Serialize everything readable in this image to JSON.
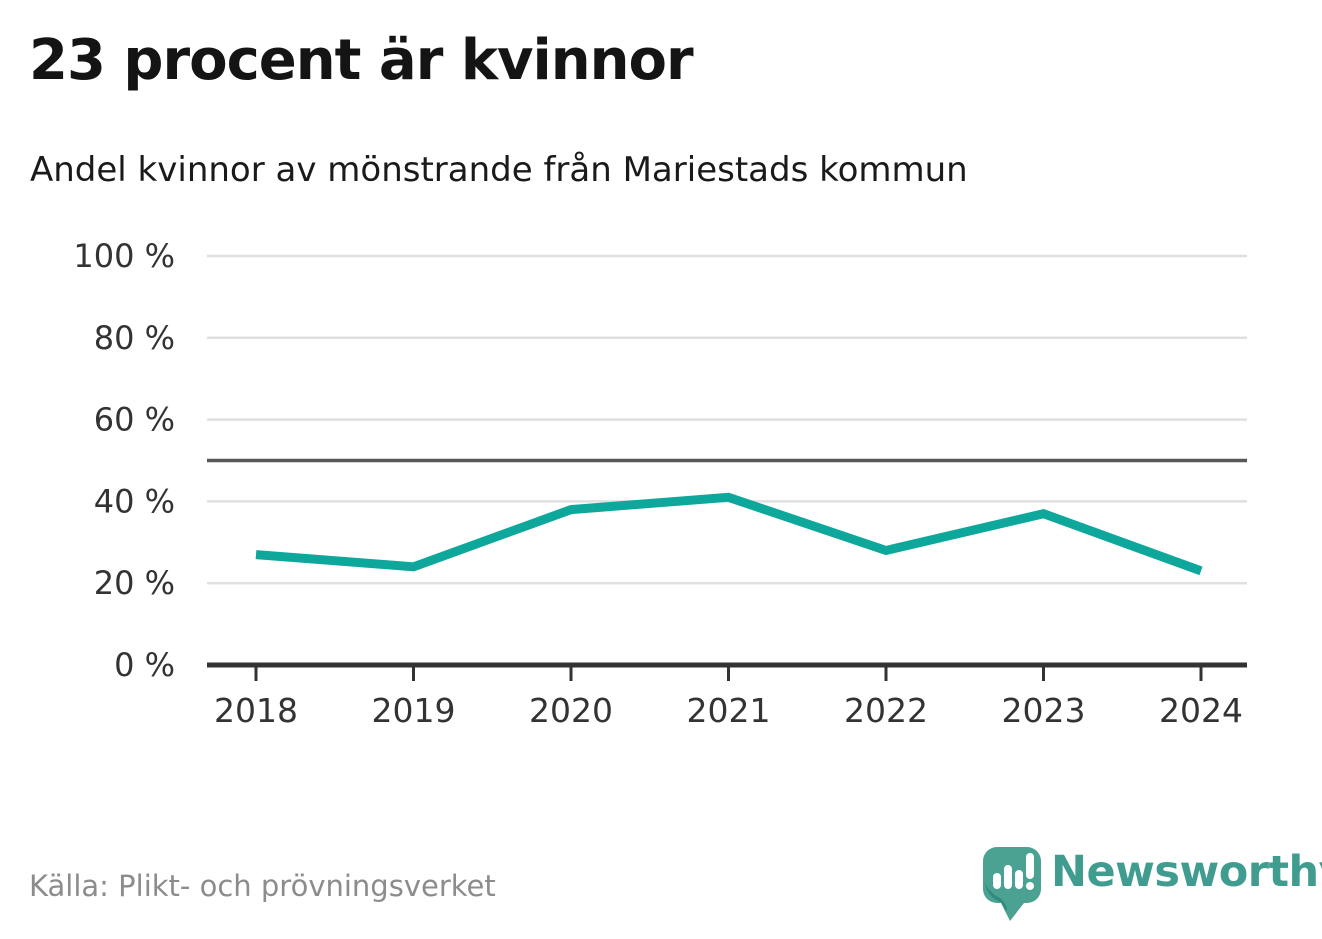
{
  "chart_data": {
    "type": "line",
    "title": "23 procent är kvinnor",
    "subtitle": "Andel kvinnor av mönstrande från Mariestads kommun",
    "categories": [
      "2018",
      "2019",
      "2020",
      "2021",
      "2022",
      "2023",
      "2024"
    ],
    "series": [
      {
        "name": "Andel kvinnor av mönstrande",
        "values": [
          27,
          24,
          38,
          41,
          28,
          37,
          23
        ]
      }
    ],
    "unit": "%",
    "ylim": [
      0,
      100
    ],
    "yticks": [
      0,
      20,
      40,
      60,
      80,
      100
    ],
    "ytick_labels": [
      "0 %",
      "20 %",
      "40 %",
      "60 %",
      "80 %",
      "100 %"
    ],
    "reference_line": 50,
    "grid": true,
    "legend_position": "none",
    "colors": {
      "line": "#0ea79b",
      "reference": "#58585a",
      "axis": "#333333",
      "grid": "#e0e0e0",
      "tick_text": "#333333"
    }
  },
  "footer": {
    "source": "Källa: Plikt- och prövningsverket",
    "brand": {
      "name": "Newsworthy",
      "wordmark_color": "#3f9c8f",
      "logo_color": "#4ba192",
      "logo_shadow_color": "#2f8a7c",
      "logo_icon": "bar-chart-exclamation-bubble"
    }
  }
}
